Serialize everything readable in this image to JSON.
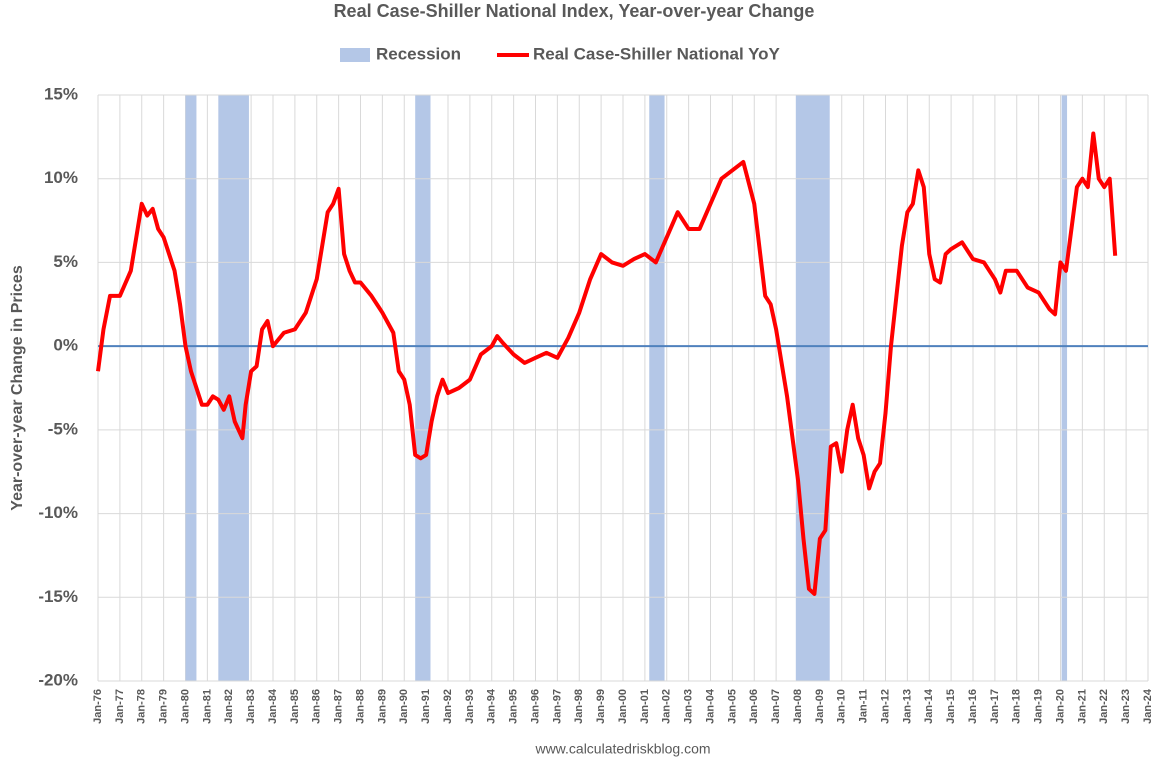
{
  "chart_data": {
    "type": "line",
    "title": "Real Case-Shiller National Index, Year-over-year Change",
    "ylabel": "Year-over-year Change in Prices",
    "source": "www.calculatedriskblog.com",
    "xlim": [
      1976,
      2024
    ],
    "xticks": [
      {
        "value": 1976,
        "label": "Jan-76"
      },
      {
        "value": 1977,
        "label": "Jan-77"
      },
      {
        "value": 1978,
        "label": "Jan-78"
      },
      {
        "value": 1979,
        "label": "Jan-79"
      },
      {
        "value": 1980,
        "label": "Jan-80"
      },
      {
        "value": 1981,
        "label": "Jan-81"
      },
      {
        "value": 1982,
        "label": "Jan-82"
      },
      {
        "value": 1983,
        "label": "Jan-83"
      },
      {
        "value": 1984,
        "label": "Jan-84"
      },
      {
        "value": 1985,
        "label": "Jan-85"
      },
      {
        "value": 1986,
        "label": "Jan-86"
      },
      {
        "value": 1987,
        "label": "Jan-87"
      },
      {
        "value": 1988,
        "label": "Jan-88"
      },
      {
        "value": 1989,
        "label": "Jan-89"
      },
      {
        "value": 1990,
        "label": "Jan-90"
      },
      {
        "value": 1991,
        "label": "Jan-91"
      },
      {
        "value": 1992,
        "label": "Jan-92"
      },
      {
        "value": 1993,
        "label": "Jan-93"
      },
      {
        "value": 1994,
        "label": "Jan-94"
      },
      {
        "value": 1995,
        "label": "Jan-95"
      },
      {
        "value": 1996,
        "label": "Jan-96"
      },
      {
        "value": 1997,
        "label": "Jan-97"
      },
      {
        "value": 1998,
        "label": "Jan-98"
      },
      {
        "value": 1999,
        "label": "Jan-99"
      },
      {
        "value": 2000,
        "label": "Jan-00"
      },
      {
        "value": 2001,
        "label": "Jan-01"
      },
      {
        "value": 2002,
        "label": "Jan-02"
      },
      {
        "value": 2003,
        "label": "Jan-03"
      },
      {
        "value": 2004,
        "label": "Jan-04"
      },
      {
        "value": 2005,
        "label": "Jan-05"
      },
      {
        "value": 2006,
        "label": "Jan-06"
      },
      {
        "value": 2007,
        "label": "Jan-07"
      },
      {
        "value": 2008,
        "label": "Jan-08"
      },
      {
        "value": 2009,
        "label": "Jan-09"
      },
      {
        "value": 2010,
        "label": "Jan-10"
      },
      {
        "value": 2011,
        "label": "Jan-11"
      },
      {
        "value": 2012,
        "label": "Jan-12"
      },
      {
        "value": 2013,
        "label": "Jan-13"
      },
      {
        "value": 2014,
        "label": "Jan-14"
      },
      {
        "value": 2015,
        "label": "Jan-15"
      },
      {
        "value": 2016,
        "label": "Jan-16"
      },
      {
        "value": 2017,
        "label": "Jan-17"
      },
      {
        "value": 2018,
        "label": "Jan-18"
      },
      {
        "value": 2019,
        "label": "Jan-19"
      },
      {
        "value": 2020,
        "label": "Jan-20"
      },
      {
        "value": 2021,
        "label": "Jan-21"
      },
      {
        "value": 2022,
        "label": "Jan-22"
      },
      {
        "value": 2023,
        "label": "Jan-23"
      },
      {
        "value": 2024,
        "label": "Jan-24"
      }
    ],
    "ylim": [
      -20,
      15
    ],
    "yticks": [
      {
        "value": -20,
        "label": "-20%"
      },
      {
        "value": -15,
        "label": "-15%"
      },
      {
        "value": -10,
        "label": "-10%"
      },
      {
        "value": -5,
        "label": "-5%"
      },
      {
        "value": 0,
        "label": "0%"
      },
      {
        "value": 5,
        "label": "5%"
      },
      {
        "value": 10,
        "label": "10%"
      },
      {
        "value": 15,
        "label": "15%"
      }
    ],
    "grid": true,
    "legend": "top",
    "recessions": {
      "name": "Recession",
      "color": "#b4c7e7",
      "spans": [
        [
          1980.0,
          1980.5
        ],
        [
          1981.5,
          1982.9
        ],
        [
          1990.5,
          1991.2
        ],
        [
          2001.2,
          2001.9
        ],
        [
          2007.9,
          2009.45
        ],
        [
          2020.05,
          2020.3
        ]
      ]
    },
    "series": [
      {
        "name": "Real Case-Shiller National YoY",
        "color": "#ff0000",
        "x": [
          1976,
          1976.25,
          1976.55,
          1977,
          1977.5,
          1977.75,
          1978,
          1978.25,
          1978.5,
          1978.75,
          1979,
          1979.5,
          1979.75,
          1980,
          1980.25,
          1980.5,
          1980.75,
          1981,
          1981.25,
          1981.5,
          1981.75,
          1982,
          1982.25,
          1982.6,
          1982.75,
          1983,
          1983.25,
          1983.5,
          1983.75,
          1984,
          1984.5,
          1985,
          1985.5,
          1986,
          1986.5,
          1986.75,
          1987,
          1987.25,
          1987.5,
          1987.75,
          1988,
          1988.5,
          1989,
          1989.5,
          1989.75,
          1990,
          1990.25,
          1990.5,
          1990.75,
          1991,
          1991.25,
          1991.5,
          1991.75,
          1992,
          1992.5,
          1993,
          1993.5,
          1994,
          1994.25,
          1994.5,
          1995,
          1995.5,
          1996,
          1996.5,
          1997,
          1997.5,
          1998,
          1998.5,
          1999,
          1999.5,
          2000,
          2000.5,
          2001,
          2001.5,
          2002,
          2002.5,
          2003,
          2003.5,
          2004,
          2004.5,
          2005,
          2005.5,
          2006,
          2006.5,
          2006.75,
          2007,
          2007.5,
          2008,
          2008.25,
          2008.5,
          2008.75,
          2009,
          2009.25,
          2009.5,
          2009.75,
          2010,
          2010.25,
          2010.5,
          2010.75,
          2011,
          2011.25,
          2011.5,
          2011.75,
          2012,
          2012.25,
          2012.5,
          2012.75,
          2013,
          2013.25,
          2013.5,
          2013.75,
          2014,
          2014.25,
          2014.5,
          2014.75,
          2015,
          2015.5,
          2016,
          2016.5,
          2017,
          2017.25,
          2017.5,
          2018,
          2018.5,
          2019,
          2019.5,
          2019.75,
          2020,
          2020.25,
          2020.5,
          2020.75,
          2021,
          2021.25,
          2021.5,
          2021.75,
          2022,
          2022.25,
          2022.5
        ],
        "values": [
          -1.5,
          1.0,
          3.0,
          3.0,
          4.5,
          6.5,
          8.5,
          7.8,
          8.2,
          7.0,
          6.5,
          4.5,
          2.5,
          0.0,
          -1.5,
          -2.5,
          -3.5,
          -3.5,
          -3.0,
          -3.2,
          -3.8,
          -3.0,
          -4.5,
          -5.5,
          -3.5,
          -1.5,
          -1.2,
          1.0,
          1.5,
          0.0,
          0.8,
          1.0,
          2.0,
          4.0,
          8.0,
          8.5,
          9.4,
          5.5,
          4.5,
          3.8,
          3.8,
          3.0,
          2.0,
          0.8,
          -1.5,
          -2.0,
          -3.5,
          -6.5,
          -6.7,
          -6.5,
          -4.5,
          -3.0,
          -2.0,
          -2.8,
          -2.5,
          -2.0,
          -0.5,
          0.0,
          0.6,
          0.2,
          -0.5,
          -1.0,
          -0.7,
          -0.4,
          -0.7,
          0.5,
          2.0,
          4.0,
          5.5,
          5.0,
          4.8,
          5.2,
          5.5,
          5.0,
          6.5,
          8.0,
          7.0,
          7.0,
          8.5,
          10.0,
          10.5,
          11.0,
          8.5,
          3.0,
          2.5,
          1.0,
          -3.0,
          -8.0,
          -11.5,
          -14.5,
          -14.8,
          -11.5,
          -11.0,
          -6.0,
          -5.8,
          -7.5,
          -5.0,
          -3.5,
          -5.5,
          -6.5,
          -8.5,
          -7.5,
          -7.0,
          -4.0,
          0.0,
          3.0,
          6.0,
          8.0,
          8.5,
          10.5,
          9.5,
          5.5,
          4.0,
          3.8,
          5.5,
          5.8,
          6.2,
          5.2,
          5.0,
          4.0,
          3.2,
          4.5,
          4.5,
          3.5,
          3.2,
          2.2,
          1.9,
          5.0,
          4.5,
          7.0,
          9.5,
          10.0,
          9.5,
          12.7,
          10.0,
          9.5,
          10.0,
          5.4
        ]
      }
    ]
  }
}
